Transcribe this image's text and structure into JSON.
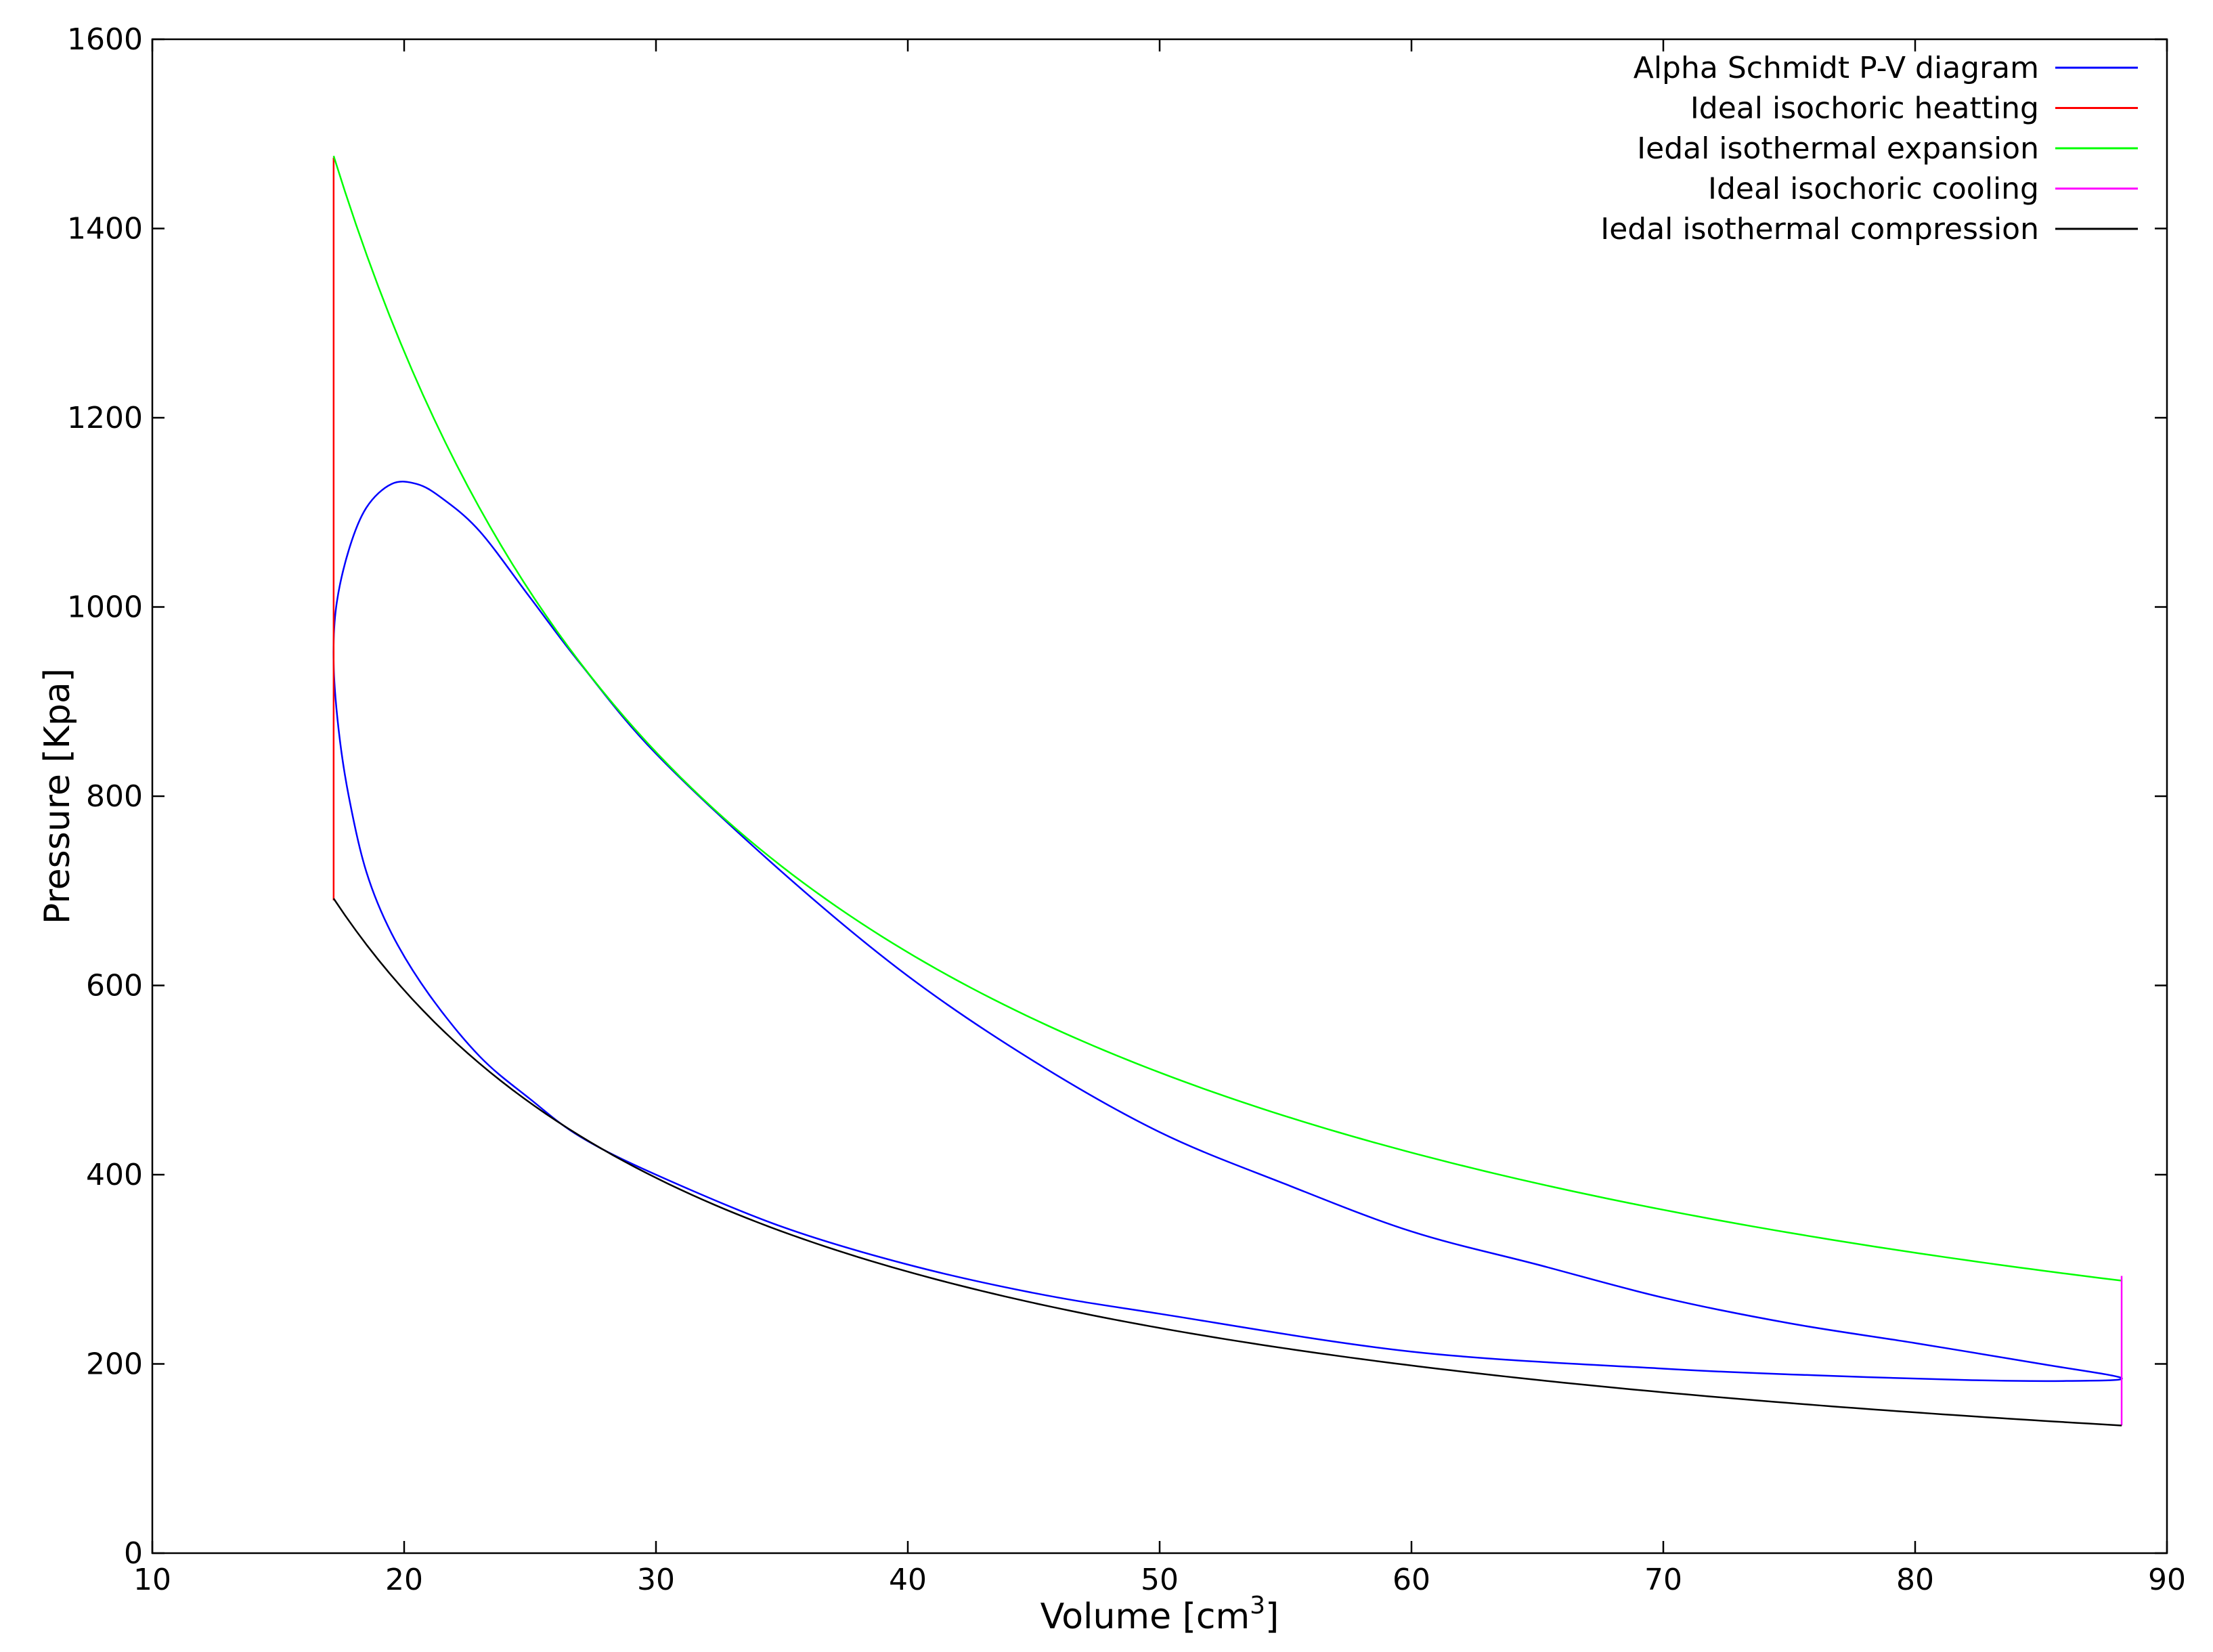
{
  "chart_data": {
    "type": "line",
    "title": "",
    "xlabel": "Volume [cm",
    "xlabel_superscript": "3",
    "xlabel_suffix": "]",
    "ylabel": "Pressure [Kpa]",
    "xlim": [
      10,
      90
    ],
    "ylim": [
      0,
      1600
    ],
    "xticks": [
      10,
      20,
      30,
      40,
      50,
      60,
      70,
      80,
      90
    ],
    "yticks": [
      0,
      200,
      400,
      600,
      800,
      1000,
      1200,
      1400,
      1600
    ],
    "grid": false,
    "legend_position": "top-right",
    "series": [
      {
        "name": "Alpha Schmidt P-V diagram",
        "color": "#0000ff",
        "closed": true,
        "points": [
          [
            88.2,
            185
          ],
          [
            86.0,
            182
          ],
          [
            82.0,
            183
          ],
          [
            76.0,
            188
          ],
          [
            70.0,
            195
          ],
          [
            60.0,
            213
          ],
          [
            50.0,
            253
          ],
          [
            45.0,
            275
          ],
          [
            40.0,
            305
          ],
          [
            35.0,
            345
          ],
          [
            30.0,
            400
          ],
          [
            27.0,
            440
          ],
          [
            25.0,
            480
          ],
          [
            23.0,
            525
          ],
          [
            21.0,
            590
          ],
          [
            19.5,
            655
          ],
          [
            18.5,
            720
          ],
          [
            17.8,
            800
          ],
          [
            17.4,
            870
          ],
          [
            17.2,
            940
          ],
          [
            17.3,
            1000
          ],
          [
            17.8,
            1060
          ],
          [
            18.5,
            1105
          ],
          [
            19.5,
            1130
          ],
          [
            20.5,
            1130
          ],
          [
            21.5,
            1115
          ],
          [
            23.0,
            1080
          ],
          [
            25.0,
            1010
          ],
          [
            27.0,
            940
          ],
          [
            30.0,
            845
          ],
          [
            35.0,
            720
          ],
          [
            40.0,
            610
          ],
          [
            45.0,
            520
          ],
          [
            50.0,
            445
          ],
          [
            55.0,
            390
          ],
          [
            60.0,
            340
          ],
          [
            65.0,
            305
          ],
          [
            70.0,
            270
          ],
          [
            75.0,
            243
          ],
          [
            80.0,
            222
          ],
          [
            85.0,
            200
          ],
          [
            88.2,
            185
          ]
        ]
      },
      {
        "name": "Ideal isochoric heatting",
        "color": "#ff0000",
        "points": [
          [
            17.2,
            690
          ],
          [
            17.2,
            1475
          ]
        ]
      },
      {
        "name": "Iedal isothermal expansion",
        "color": "#00ff00",
        "isotherm_constant": 25400,
        "x_range": [
          17.2,
          88.2
        ]
      },
      {
        "name": "Ideal isochoric cooling",
        "color": "#ff00ff",
        "points": [
          [
            88.2,
            135
          ],
          [
            88.2,
            293
          ]
        ]
      },
      {
        "name": "Iedal isothermal compression",
        "color": "#000000",
        "isotherm_constant": 11900,
        "x_range": [
          17.2,
          88.2
        ]
      }
    ]
  }
}
